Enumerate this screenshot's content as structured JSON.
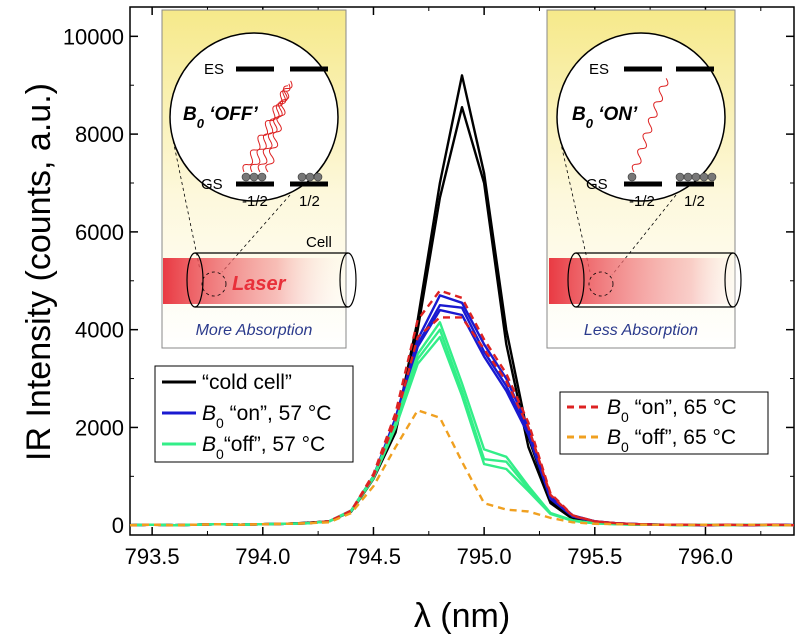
{
  "chart_data": {
    "type": "line",
    "xlabel": "λ (nm)",
    "ylabel": "IR Intensity (counts, a.u.)",
    "xlim": [
      793.4,
      796.4
    ],
    "ylim": [
      -200,
      10600
    ],
    "xticks": [
      793.5,
      794.0,
      794.5,
      795.0,
      795.5,
      796.0
    ],
    "xtick_labels": [
      "793.5",
      "794.0",
      "794.5",
      "795.0",
      "795.5",
      "796.0"
    ],
    "yticks": [
      0,
      2000,
      4000,
      6000,
      8000,
      10000
    ],
    "ytick_labels": [
      "0",
      "2000",
      "4000",
      "6000",
      "8000",
      "10000"
    ],
    "x": [
      793.4,
      793.5,
      793.6,
      793.7,
      793.8,
      793.9,
      794.0,
      794.1,
      794.2,
      794.3,
      794.4,
      794.5,
      794.6,
      794.7,
      794.8,
      794.9,
      795.0,
      795.1,
      795.2,
      795.3,
      795.4,
      795.5,
      795.6,
      795.7,
      795.8,
      795.9,
      796.0,
      796.1,
      796.2,
      796.3,
      796.4
    ],
    "series": [
      {
        "name": "cold cell (run 1)",
        "legend_group": "cold",
        "color": "#000000",
        "dash": "",
        "values": [
          0,
          10,
          0,
          10,
          20,
          10,
          20,
          30,
          50,
          80,
          300,
          1000,
          2000,
          4200,
          7000,
          9200,
          7200,
          4000,
          1800,
          500,
          150,
          60,
          30,
          20,
          10,
          10,
          0,
          10,
          0,
          10,
          0
        ]
      },
      {
        "name": "cold cell (run 2)",
        "legend_group": "cold",
        "color": "#000000",
        "dash": "",
        "values": [
          0,
          10,
          0,
          10,
          20,
          10,
          20,
          30,
          50,
          80,
          280,
          950,
          1900,
          4000,
          6700,
          8550,
          7000,
          3700,
          1600,
          450,
          130,
          50,
          25,
          15,
          10,
          5,
          0,
          10,
          0,
          10,
          0
        ]
      },
      {
        "name": "B0 on, 57 °C (run 1)",
        "legend_group": "on57",
        "color": "#1a1ad0",
        "dash": "",
        "values": [
          0,
          10,
          0,
          10,
          20,
          10,
          20,
          30,
          40,
          80,
          300,
          1000,
          2200,
          3800,
          4700,
          4550,
          3700,
          3000,
          2000,
          600,
          200,
          80,
          40,
          20,
          10,
          10,
          0,
          10,
          0,
          10,
          0
        ]
      },
      {
        "name": "B0 on, 57 °C (run 2)",
        "legend_group": "on57",
        "color": "#1a1ad0",
        "dash": "",
        "values": [
          0,
          10,
          0,
          10,
          20,
          10,
          20,
          30,
          40,
          80,
          300,
          1000,
          2150,
          3700,
          4500,
          4450,
          3550,
          2850,
          1900,
          560,
          190,
          80,
          40,
          20,
          10,
          10,
          0,
          10,
          0,
          10,
          0
        ]
      },
      {
        "name": "B0 on, 57 °C (run 3)",
        "legend_group": "on57",
        "color": "#1a1ad0",
        "dash": "",
        "values": [
          0,
          10,
          0,
          10,
          20,
          10,
          20,
          30,
          40,
          80,
          300,
          980,
          2100,
          3650,
          4400,
          4300,
          3450,
          2750,
          1850,
          540,
          180,
          75,
          40,
          20,
          10,
          10,
          0,
          10,
          0,
          10,
          0
        ]
      },
      {
        "name": "B0 off, 57 °C (run 1)",
        "legend_group": "off57",
        "color": "#33ee88",
        "dash": "",
        "values": [
          0,
          10,
          0,
          10,
          20,
          10,
          20,
          30,
          40,
          80,
          300,
          1000,
          2100,
          3500,
          4150,
          2900,
          1550,
          1400,
          800,
          250,
          100,
          40,
          20,
          10,
          10,
          0,
          10,
          0,
          10,
          0,
          0
        ]
      },
      {
        "name": "B0 off, 57 °C (run 2)",
        "legend_group": "off57",
        "color": "#33ee88",
        "dash": "",
        "values": [
          0,
          10,
          0,
          10,
          20,
          10,
          20,
          30,
          40,
          80,
          300,
          980,
          2050,
          3400,
          4000,
          2750,
          1350,
          1300,
          750,
          240,
          90,
          40,
          20,
          10,
          10,
          0,
          10,
          0,
          10,
          0,
          0
        ]
      },
      {
        "name": "B0 off, 57 °C (run 3)",
        "legend_group": "off57",
        "color": "#33ee88",
        "dash": "",
        "values": [
          0,
          10,
          0,
          10,
          20,
          10,
          20,
          30,
          40,
          80,
          290,
          960,
          2000,
          3300,
          3850,
          2650,
          1250,
          1150,
          700,
          230,
          90,
          40,
          20,
          10,
          10,
          0,
          10,
          0,
          10,
          0,
          0
        ]
      },
      {
        "name": "B0 on, 65 °C (run 1)",
        "legend_group": "on65",
        "color": "#dd2222",
        "dash": "7,5",
        "values": [
          0,
          10,
          0,
          10,
          20,
          10,
          20,
          30,
          40,
          80,
          300,
          1050,
          2300,
          4200,
          4800,
          4650,
          3800,
          3100,
          2100,
          650,
          200,
          80,
          40,
          20,
          10,
          10,
          0,
          10,
          0,
          10,
          0
        ]
      },
      {
        "name": "B0 on, 65 °C (run 2)",
        "legend_group": "on65",
        "color": "#dd2222",
        "dash": "7,5",
        "values": [
          0,
          10,
          0,
          10,
          20,
          10,
          20,
          30,
          40,
          80,
          290,
          1000,
          2150,
          3850,
          4250,
          4250,
          3600,
          2950,
          2000,
          620,
          190,
          80,
          40,
          20,
          10,
          10,
          0,
          10,
          0,
          10,
          0
        ]
      },
      {
        "name": "B0 off, 65 °C",
        "legend_group": "off65",
        "color": "#f0a020",
        "dash": "7,5",
        "values": [
          0,
          10,
          0,
          10,
          20,
          10,
          20,
          30,
          40,
          60,
          250,
          800,
          1600,
          2350,
          2200,
          1300,
          450,
          320,
          280,
          150,
          60,
          30,
          20,
          10,
          10,
          0,
          10,
          0,
          10,
          0,
          0
        ]
      }
    ],
    "legend": [
      {
        "key": "cold",
        "label": "“cold cell”",
        "color": "#000000",
        "dash": ""
      },
      {
        "key": "on57",
        "prefix": "B",
        "sub": "0",
        "label": " “on”, 57 °C",
        "color": "#1a1ad0",
        "dash": ""
      },
      {
        "key": "off57",
        "prefix": "B",
        "sub": "0",
        "label": "“off”, 57 °C",
        "color": "#33ee88",
        "dash": ""
      },
      {
        "key": "on65",
        "prefix": "B",
        "sub": "0",
        "label": " “on”, 65 °C",
        "color": "#dd2222",
        "dash": "7,5"
      },
      {
        "key": "off65",
        "prefix": "B",
        "sub": "0",
        "label": " “off”, 65 °C",
        "color": "#f0a020",
        "dash": "7,5"
      }
    ],
    "legend_placement": [
      "center-left",
      "center-right"
    ],
    "insets": [
      {
        "b0_text": "B",
        "b0_sub": "0",
        "b0_state": " ‘OFF’",
        "es": "ES",
        "gs": "GS",
        "spin_left": "-1/2",
        "spin_right": "1/2",
        "cell": "Cell",
        "laser": "Laser",
        "absorption": "More Absorption"
      },
      {
        "b0_text": "B",
        "b0_sub": "0",
        "b0_state": " ‘ON’",
        "es": "ES",
        "gs": "GS",
        "spin_left": "-1/2",
        "spin_right": "1/2",
        "absorption": "Less Absorption"
      }
    ],
    "colors": {
      "inset_bg_top": "#f6e98a",
      "inset_bg_bottom": "#ffffff",
      "laser": "#e8303a",
      "absorption_text": "#2b3a8c"
    }
  }
}
